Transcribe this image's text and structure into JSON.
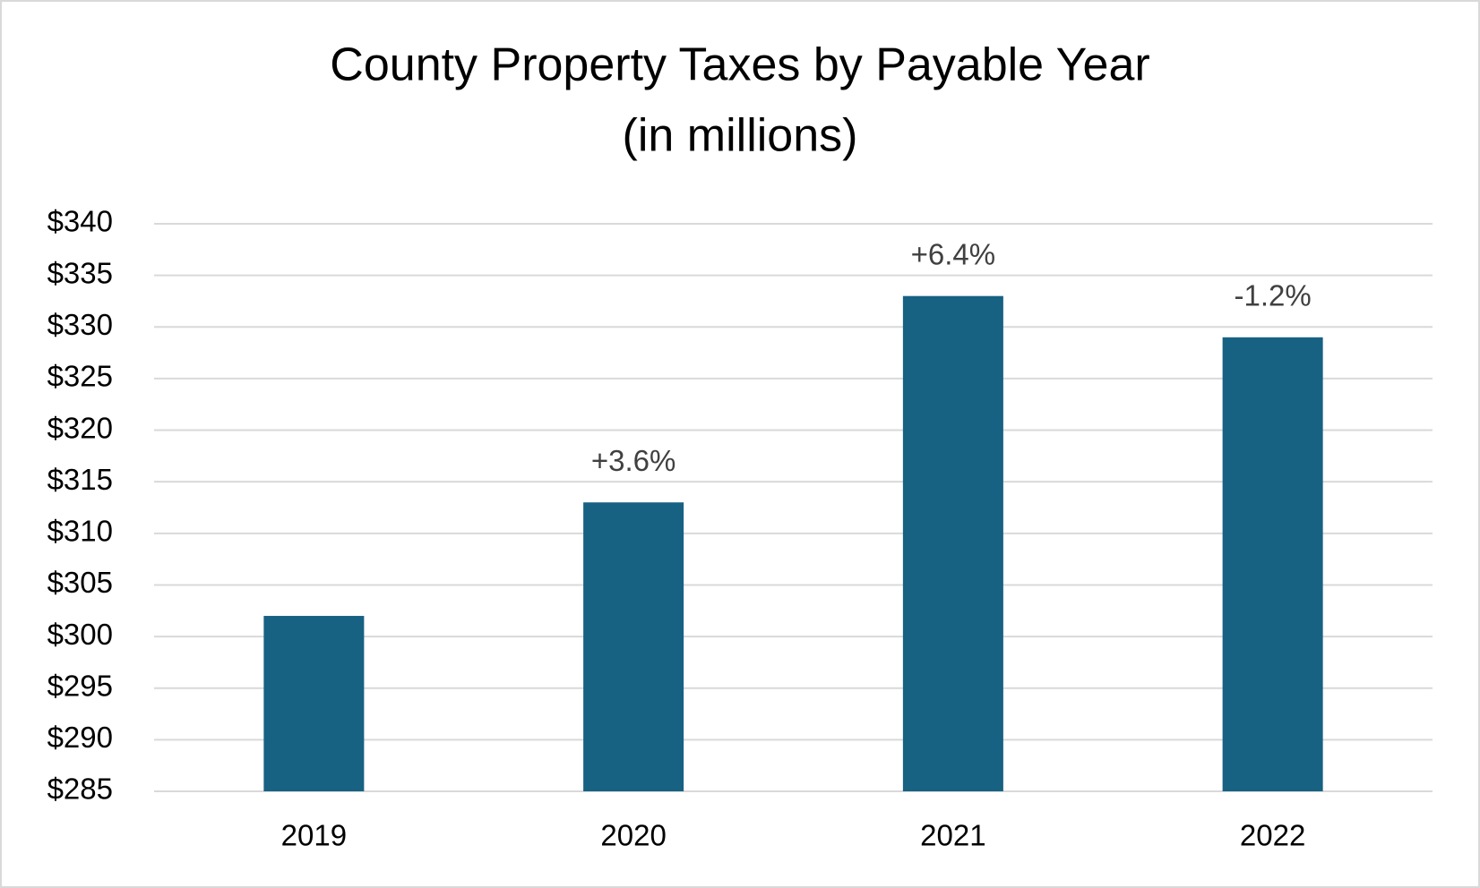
{
  "chart_data": {
    "type": "bar",
    "title": "County Property Taxes by Payable Year",
    "subtitle": "(in millions)",
    "categories": [
      "2019",
      "2020",
      "2021",
      "2022"
    ],
    "values": [
      302,
      313,
      333,
      329
    ],
    "change_labels": [
      null,
      "+3.6%",
      "+6.4%",
      "-1.2%"
    ],
    "color": "#176183",
    "ylim": [
      285,
      340
    ],
    "yticks": [
      {
        "value": 285,
        "label": "$285"
      },
      {
        "value": 290,
        "label": "$290"
      },
      {
        "value": 295,
        "label": "$295"
      },
      {
        "value": 300,
        "label": "$300"
      },
      {
        "value": 305,
        "label": "$305"
      },
      {
        "value": 310,
        "label": "$310"
      },
      {
        "value": 315,
        "label": "$315"
      },
      {
        "value": 320,
        "label": "$320"
      },
      {
        "value": 325,
        "label": "$325"
      },
      {
        "value": 330,
        "label": "$330"
      },
      {
        "value": 335,
        "label": "$335"
      },
      {
        "value": 340,
        "label": "$340"
      }
    ],
    "grid": true
  }
}
